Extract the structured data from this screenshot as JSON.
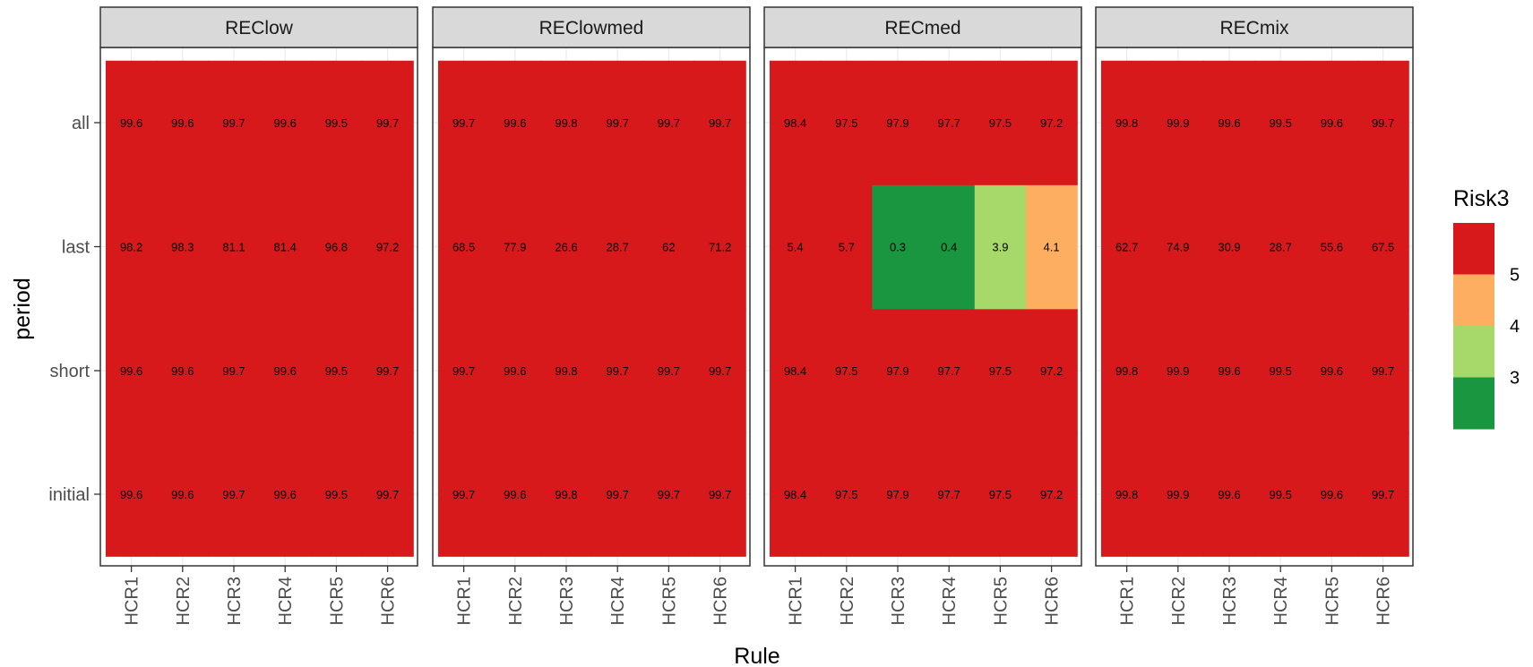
{
  "chart_data": {
    "type": "heatmap",
    "xlabel": "Rule",
    "ylabel": "period",
    "rules": [
      "HCR1",
      "HCR2",
      "HCR3",
      "HCR4",
      "HCR5",
      "HCR6"
    ],
    "periods": [
      "initial",
      "short",
      "last",
      "all"
    ],
    "panels": [
      {
        "name": "REClow",
        "values": {
          "all": [
            99.6,
            99.6,
            99.7,
            99.6,
            99.5,
            99.7
          ],
          "last": [
            98.2,
            98.3,
            81.1,
            81.4,
            96.8,
            97.2
          ],
          "short": [
            99.6,
            99.6,
            99.7,
            99.6,
            99.5,
            99.7
          ],
          "initial": [
            99.6,
            99.6,
            99.7,
            99.6,
            99.5,
            99.7
          ]
        }
      },
      {
        "name": "REClowmed",
        "values": {
          "all": [
            99.7,
            99.6,
            99.8,
            99.7,
            99.7,
            99.7
          ],
          "last": [
            68.5,
            77.9,
            26.6,
            28.7,
            62,
            71.2
          ],
          "short": [
            99.7,
            99.6,
            99.8,
            99.7,
            99.7,
            99.7
          ],
          "initial": [
            99.7,
            99.6,
            99.8,
            99.7,
            99.7,
            99.7
          ]
        }
      },
      {
        "name": "RECmed",
        "values": {
          "all": [
            98.4,
            97.5,
            97.9,
            97.7,
            97.5,
            97.2
          ],
          "last": [
            5.4,
            5.7,
            0.3,
            0.4,
            3.9,
            4.1
          ],
          "short": [
            98.4,
            97.5,
            97.9,
            97.7,
            97.5,
            97.2
          ],
          "initial": [
            98.4,
            97.5,
            97.9,
            97.7,
            97.5,
            97.2
          ]
        }
      },
      {
        "name": "RECmix",
        "values": {
          "all": [
            99.8,
            99.9,
            99.6,
            99.5,
            99.6,
            99.7
          ],
          "last": [
            62.7,
            74.9,
            30.9,
            28.7,
            55.6,
            67.5
          ],
          "short": [
            99.8,
            99.9,
            99.6,
            99.5,
            99.6,
            99.7
          ],
          "initial": [
            99.8,
            99.9,
            99.6,
            99.5,
            99.6,
            99.7
          ]
        }
      }
    ],
    "legend": {
      "title": "Risk3",
      "placement": "right",
      "bins": [
        {
          "upper": null,
          "color": "#1a9641"
        },
        {
          "upper": 3,
          "color": "#a6d96a"
        },
        {
          "upper": 4,
          "color": "#fdae61"
        },
        {
          "upper": 5,
          "color": "#d7191c"
        }
      ],
      "labels": [
        "3",
        "4",
        "5"
      ]
    },
    "grid": true
  }
}
